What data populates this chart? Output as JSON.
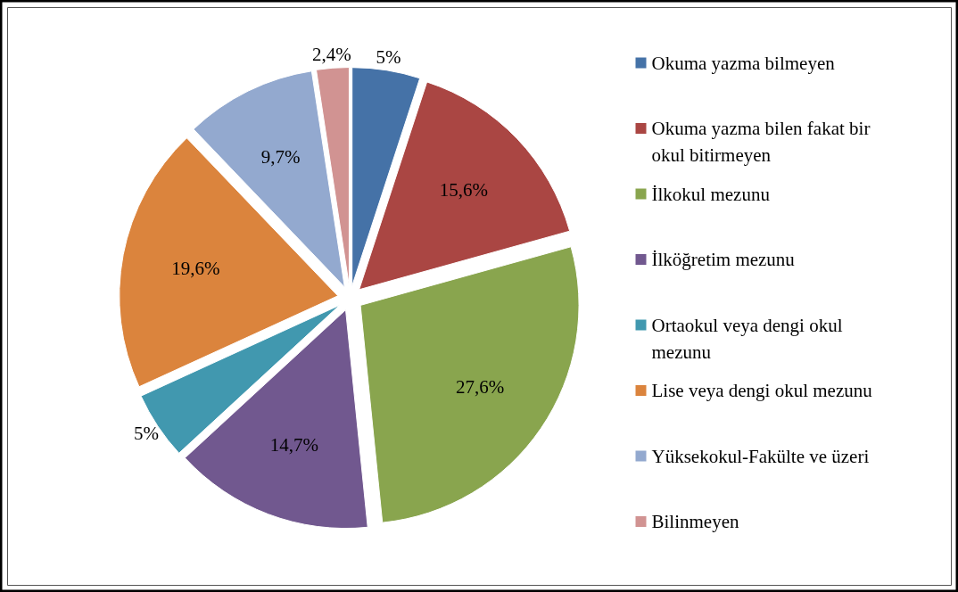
{
  "chart_data": {
    "type": "pie",
    "categories": [
      "Okuma yazma bilmeyen",
      "Okuma yazma bilen fakat bir okul bitirmeyen",
      "İlkokul mezunu",
      "İlköğretim mezunu",
      "Ortaokul veya dengi okul mezunu",
      "Lise veya dengi okul mezunu",
      "Yüksekokul-Fakülte ve üzeri",
      "Bilinmeyen"
    ],
    "values": [
      5,
      15.6,
      27.6,
      14.7,
      5,
      19.6,
      9.7,
      2.4
    ],
    "value_labels": [
      "5%",
      "15,6%",
      "27,6%",
      "14,7%",
      "5%",
      "19,6%",
      "9,7%",
      "2,4%"
    ],
    "colors": [
      "#4572a7",
      "#aa4643",
      "#89a54e",
      "#71588f",
      "#4198af",
      "#db843d",
      "#93a9cf",
      "#d19392"
    ],
    "legend": "right"
  }
}
